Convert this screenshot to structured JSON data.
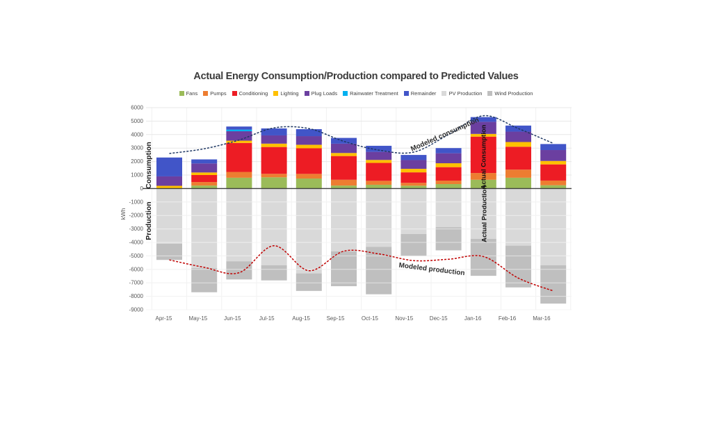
{
  "axis_labels": {
    "kwh": "kWh",
    "consumption": "Consumption",
    "production": "Production"
  },
  "annotations": {
    "modeled_consumption": "Modeled consumption",
    "modeled_production": "Modeled production",
    "actual_consumption": "Actual Consumption",
    "actual_production": "Actual Production"
  },
  "chart_data": {
    "type": "bar",
    "stacked": true,
    "title": "Actual Energy Consumption/Production compared to Predicted Values",
    "xlabel": "",
    "ylabel": "kWh",
    "ylim": [
      -9000,
      6000
    ],
    "ytick_step": 1000,
    "grid": true,
    "legend_position": "top",
    "categories": [
      "Apr-15",
      "May-15",
      "Jun-15",
      "Jul-15",
      "Aug-15",
      "Sep-15",
      "Oct-15",
      "Nov-15",
      "Dec-15",
      "Jan-16",
      "Feb-16",
      "Mar-16"
    ],
    "series": [
      {
        "name": "Fans",
        "color": "#9bbb59",
        "values": [
          0,
          220,
          800,
          830,
          740,
          220,
          280,
          210,
          330,
          650,
          800,
          245
        ]
      },
      {
        "name": "Pumps",
        "color": "#ed7d31",
        "values": [
          0,
          260,
          430,
          260,
          345,
          430,
          290,
          210,
          255,
          500,
          600,
          345
        ]
      },
      {
        "name": "Conditioning",
        "color": "#ed1c24",
        "values": [
          0,
          520,
          2150,
          1990,
          1900,
          1760,
          1330,
          780,
          1000,
          2700,
          1700,
          1200
        ]
      },
      {
        "name": "Lighting",
        "color": "#ffc000",
        "values": [
          200,
          190,
          170,
          250,
          260,
          225,
          220,
          260,
          290,
          200,
          350,
          255
        ]
      },
      {
        "name": "Plug Loads",
        "color": "#6b3fa0",
        "values": [
          700,
          670,
          700,
          610,
          640,
          690,
          600,
          650,
          740,
          900,
          770,
          810
        ]
      },
      {
        "name": "Rainwater Treatment",
        "color": "#00b0f0",
        "values": [
          0,
          0,
          120,
          0,
          0,
          0,
          0,
          0,
          0,
          0,
          0,
          0
        ]
      },
      {
        "name": "Remainder",
        "color": "#4155c8",
        "values": [
          1400,
          300,
          230,
          520,
          520,
          430,
          450,
          380,
          385,
          350,
          450,
          445
        ]
      },
      {
        "name": "PV Production",
        "color": "#d9d9d9",
        "values": [
          -4100,
          -5900,
          -5400,
          -5700,
          -6300,
          -4670,
          -4330,
          -3380,
          -2870,
          -3730,
          -4240,
          -5700
        ]
      },
      {
        "name": "Wind Production",
        "color": "#bfbfbf",
        "values": [
          -1200,
          -1800,
          -1350,
          -1120,
          -1300,
          -2580,
          -3520,
          -1630,
          -1720,
          -2750,
          -3100,
          -2840
        ]
      }
    ],
    "lines": [
      {
        "name": "Modeled consumption",
        "color": "#1f3864",
        "style": "dashed",
        "values": [
          2600,
          2950,
          3600,
          4500,
          4450,
          3500,
          2850,
          2700,
          4000,
          5400,
          4450,
          3350
        ]
      },
      {
        "name": "Modeled production",
        "color": "#c00000",
        "style": "dashed",
        "values": [
          -5300,
          -5850,
          -6250,
          -4250,
          -6100,
          -4650,
          -4850,
          -5350,
          -5250,
          -5050,
          -6650,
          -7600
        ]
      }
    ]
  }
}
